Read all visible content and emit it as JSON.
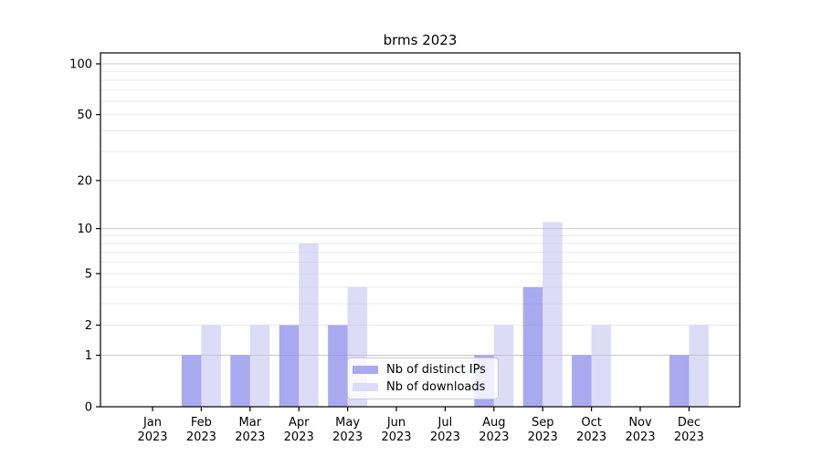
{
  "title": "brms 2023",
  "chart_data": {
    "type": "bar",
    "title": "brms 2023",
    "categories": [
      "Jan 2023",
      "Feb 2023",
      "Mar 2023",
      "Apr 2023",
      "May 2023",
      "Jun 2023",
      "Jul 2023",
      "Aug 2023",
      "Sep 2023",
      "Oct 2023",
      "Nov 2023",
      "Dec 2023"
    ],
    "series": [
      {
        "name": "Nb of distinct IPs",
        "bar_color": "rgba(140,140,235,0.75)",
        "legend_color": "#a9a9f0",
        "values": [
          0,
          1,
          1,
          2,
          2,
          0,
          0,
          1,
          4,
          1,
          0,
          1
        ]
      },
      {
        "name": "Nb of downloads",
        "bar_color": "rgba(185,185,240,0.5)",
        "legend_color": "#dcdcf8",
        "values": [
          0,
          2,
          2,
          8,
          4,
          0,
          0,
          2,
          11,
          2,
          0,
          2
        ]
      }
    ],
    "yscale": "log1p",
    "yticks": [
      0,
      1,
      2,
      5,
      10,
      20,
      50,
      100
    ],
    "minor_gridlines": [
      2,
      3,
      4,
      5,
      6,
      7,
      8,
      9,
      20,
      30,
      40,
      50,
      60,
      70,
      80,
      90
    ],
    "major_gridlines": [
      1,
      10,
      100
    ],
    "ylim": [
      0,
      116
    ],
    "grid": true,
    "legend_position": "lower center"
  },
  "colors": {
    "axis": "#000000",
    "major_grid": "#c8c8c8",
    "minor_grid": "#ebebeb",
    "tick_label": "#000000",
    "legend_border": "#cccccc"
  }
}
